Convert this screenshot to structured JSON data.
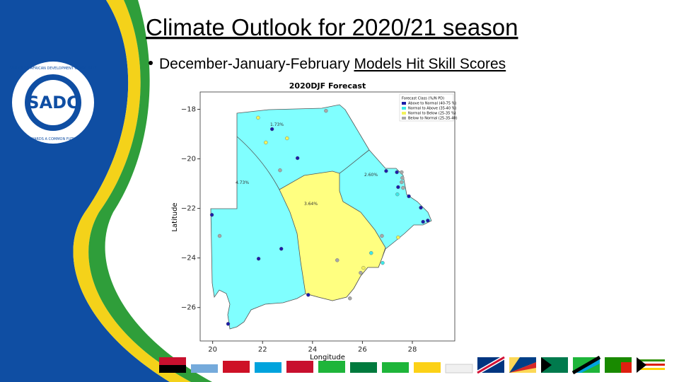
{
  "slide": {
    "title": "Climate Outlook for 2020/21 season",
    "bullet": {
      "text": "December-January-February",
      "link": "Models Hit Skill Scores"
    },
    "logo": {
      "name": "SADC",
      "ring_top": "SOUTHERN AFRICAN DEVELOPMENT COMMUNITY",
      "ring_bottom": "TOWARDS A COMMON FUTURE"
    }
  },
  "chart_data": {
    "type": "map",
    "title": "2020DJF Forecast",
    "x_label": "Longitude",
    "y_label": "Latitude",
    "xlim": [
      19.5,
      29.7
    ],
    "ylim": [
      -27.35,
      -17.3
    ],
    "xticks": [
      20,
      22,
      24,
      26,
      28
    ],
    "yticks": [
      {
        "value": -18,
        "label": "−18"
      },
      {
        "value": -20,
        "label": "−20"
      },
      {
        "value": -22,
        "label": "−22"
      },
      {
        "value": -24,
        "label": "−24"
      },
      {
        "value": -26,
        "label": "−26"
      }
    ],
    "legend": {
      "title": "Forecast Class (%/N PD)",
      "position": "upper right",
      "entries": [
        {
          "name": "Above to Normal (40-75 %)",
          "color": "#1c1ca8"
        },
        {
          "name": "Normal to Above (35-40 %)",
          "color": "#3ee8e8"
        },
        {
          "name": "Normal to Below (25-35 %)",
          "color": "#f2f25a"
        },
        {
          "name": "Below to Normal (25-35-40)",
          "color": "#a8a8a8"
        }
      ]
    },
    "region_labels": [
      "1.73%",
      "4.73%",
      "2.60%",
      "3.64%"
    ],
    "stations": {
      "lon": [
        21.82,
        22.38,
        22.13,
        22.98,
        23.4,
        22.7,
        24.54,
        19.97,
        20.28,
        22.75,
        21.84,
        23.83,
        24.99,
        26.35,
        26.81,
        26.04,
        25.93,
        25.5,
        26.78,
        27.43,
        26.95,
        27.38,
        27.57,
        27.6,
        27.57,
        27.63,
        27.43,
        27.4,
        27.86,
        28.34,
        28.43,
        28.62,
        20.62
      ],
      "lat": [
        -18.34,
        -18.8,
        -19.34,
        -19.17,
        -19.97,
        -20.46,
        -18.06,
        -22.26,
        -23.11,
        -23.63,
        -24.03,
        -25.49,
        -24.09,
        -23.8,
        -24.2,
        -24.4,
        -24.6,
        -25.63,
        -23.11,
        -23.17,
        -20.49,
        -20.54,
        -20.54,
        -20.77,
        -20.94,
        -21.17,
        -21.14,
        -21.43,
        -21.51,
        -21.97,
        -22.54,
        -22.49,
        -26.66
      ],
      "class": [
        2,
        0,
        2,
        2,
        0,
        3,
        3,
        0,
        3,
        0,
        0,
        0,
        3,
        1,
        1,
        2,
        3,
        3,
        3,
        2,
        0,
        0,
        3,
        3,
        3,
        3,
        0,
        1,
        0,
        0,
        0,
        0,
        0
      ]
    }
  }
}
